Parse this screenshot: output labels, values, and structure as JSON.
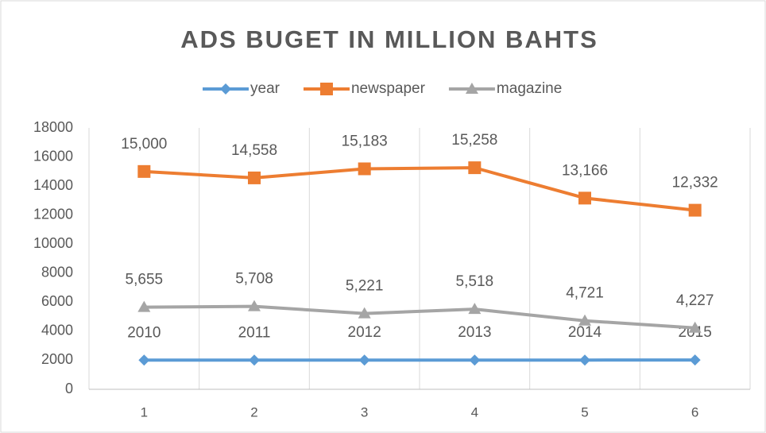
{
  "chart_data": {
    "type": "line",
    "title": "ADS BUGET IN MILLION BAHTS",
    "categories": [
      1,
      2,
      3,
      4,
      5,
      6
    ],
    "series": [
      {
        "name": "year",
        "color": "#5b9bd5",
        "marker": "diamond",
        "values": [
          2010,
          2011,
          2012,
          2013,
          2014,
          2015
        ]
      },
      {
        "name": "newspaper",
        "color": "#ed7d31",
        "marker": "square",
        "values": [
          15000,
          14558,
          15183,
          15258,
          13166,
          12332
        ],
        "value_labels": [
          "15,000",
          "14,558",
          "15,183",
          "15,258",
          "13,166",
          "12,332"
        ]
      },
      {
        "name": "magazine",
        "color": "#a5a5a5",
        "marker": "triangle",
        "values": [
          5655,
          5708,
          5221,
          5518,
          4721,
          4227
        ],
        "value_labels": [
          "5,655",
          "5,708",
          "5,221",
          "5,518",
          "4,721",
          "4,227"
        ]
      }
    ],
    "ylim": [
      0,
      18000
    ],
    "yticks": [
      0,
      2000,
      4000,
      6000,
      8000,
      10000,
      12000,
      14000,
      16000,
      18000
    ],
    "legend": "top"
  }
}
